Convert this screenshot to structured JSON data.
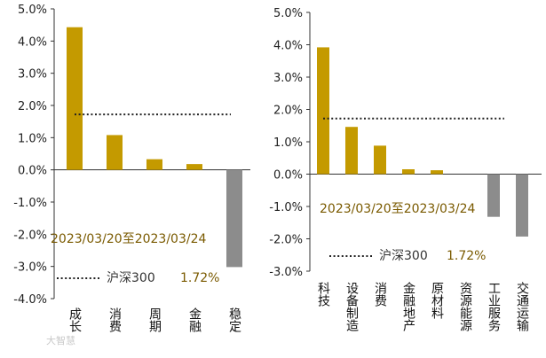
{
  "colors": {
    "positive": "#C49A00",
    "negative": "#8C8C8C",
    "axis": "#333333",
    "benchmark": "#222222"
  },
  "watermark": "大智慧",
  "chart_data": [
    {
      "type": "bar",
      "categories": [
        "成长",
        "消费",
        "周期",
        "金融",
        "稳定"
      ],
      "values": [
        4.43,
        1.08,
        0.33,
        0.18,
        -3.02
      ],
      "ylim": [
        -4.0,
        5.0
      ],
      "yticks": [
        "5.0%",
        "4.0%",
        "3.0%",
        "2.0%",
        "1.0%",
        "0.0%",
        "-1.0%",
        "-2.0%",
        "-3.0%",
        "-4.0%"
      ],
      "benchmark": {
        "value": 1.72
      },
      "annotation": {
        "date_range": "2023/03/20至2023/03/24",
        "benchmark_name": "沪深300",
        "benchmark_text": "1.72%"
      },
      "grid": false,
      "legend": "bottom-left"
    },
    {
      "type": "bar",
      "categories": [
        "科技",
        "设备制造",
        "消费",
        "金融地产",
        "原材料",
        "资源能源",
        "工业服务",
        "交通运输"
      ],
      "values": [
        3.92,
        1.46,
        0.88,
        0.15,
        0.12,
        0.0,
        -1.32,
        -1.93
      ],
      "ylim": [
        -3.0,
        5.0
      ],
      "yticks": [
        "5.0%",
        "4.0%",
        "3.0%",
        "2.0%",
        "1.0%",
        "0.0%",
        "-1.0%",
        "-2.0%",
        "-3.0%"
      ],
      "benchmark": {
        "value": 1.72
      },
      "annotation": {
        "date_range": "2023/03/20至2023/03/24",
        "benchmark_name": "沪深300",
        "benchmark_text": "1.72%"
      },
      "grid": false,
      "legend": "bottom-left"
    }
  ]
}
